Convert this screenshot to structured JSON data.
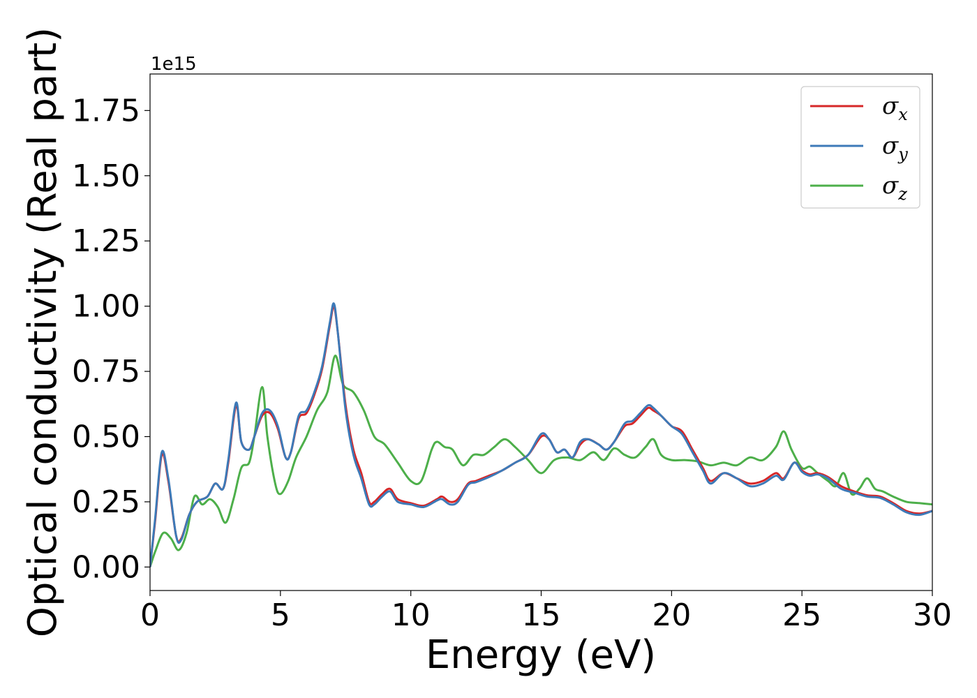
{
  "chart_data": {
    "type": "line",
    "xlabel": "Energy (eV)",
    "ylabel": "Optical conductivity (Real part)",
    "y_offset_label": "1e15",
    "xlim": [
      0,
      30
    ],
    "ylim": [
      -0.09,
      1.89
    ],
    "x_ticks": [
      0,
      5,
      10,
      15,
      20,
      25,
      30
    ],
    "x_tick_labels": [
      "0",
      "5",
      "10",
      "15",
      "20",
      "25",
      "30"
    ],
    "y_ticks": [
      0,
      0.25,
      0.5,
      0.75,
      1.0,
      1.25,
      1.5,
      1.75
    ],
    "y_tick_labels": [
      "0.00",
      "0.25",
      "0.50",
      "0.75",
      "1.00",
      "1.25",
      "1.50",
      "1.75"
    ],
    "grid": false,
    "legend_position": "top-right",
    "series": [
      {
        "name": "σx",
        "symbol": "σ",
        "subscript": "x",
        "color": "#d62728",
        "x": [
          0,
          0.2,
          0.45,
          0.7,
          1.0,
          1.2,
          1.5,
          1.8,
          2.2,
          2.5,
          2.8,
          3.0,
          3.3,
          3.5,
          3.8,
          4.0,
          4.3,
          4.6,
          4.9,
          5.2,
          5.4,
          5.7,
          6.0,
          6.3,
          6.6,
          6.9,
          7.05,
          7.2,
          7.5,
          7.8,
          8.1,
          8.4,
          8.6,
          8.9,
          9.2,
          9.5,
          10.0,
          10.5,
          11.0,
          11.2,
          11.5,
          11.8,
          12.2,
          12.5,
          13.0,
          13.5,
          14.0,
          14.5,
          15.0,
          15.3,
          15.6,
          15.9,
          16.2,
          16.5,
          16.8,
          17.2,
          17.5,
          17.8,
          18.2,
          18.5,
          18.8,
          19.1,
          19.3,
          19.6,
          20.0,
          20.4,
          20.8,
          21.2,
          21.5,
          22.0,
          22.5,
          23.0,
          23.5,
          24.0,
          24.3,
          24.7,
          25.0,
          25.3,
          25.6,
          26.0,
          26.5,
          27.0,
          27.5,
          28.0,
          28.5,
          29.0,
          29.5,
          30.0
        ],
        "values": [
          0.0,
          0.18,
          0.43,
          0.33,
          0.12,
          0.11,
          0.2,
          0.25,
          0.27,
          0.32,
          0.3,
          0.4,
          0.62,
          0.48,
          0.45,
          0.5,
          0.58,
          0.59,
          0.53,
          0.42,
          0.44,
          0.57,
          0.59,
          0.66,
          0.76,
          0.93,
          1.0,
          0.9,
          0.62,
          0.45,
          0.36,
          0.25,
          0.25,
          0.28,
          0.3,
          0.26,
          0.245,
          0.235,
          0.26,
          0.27,
          0.25,
          0.26,
          0.32,
          0.33,
          0.35,
          0.37,
          0.4,
          0.43,
          0.5,
          0.49,
          0.44,
          0.45,
          0.42,
          0.47,
          0.49,
          0.47,
          0.45,
          0.48,
          0.54,
          0.55,
          0.58,
          0.61,
          0.6,
          0.58,
          0.54,
          0.52,
          0.45,
          0.38,
          0.33,
          0.36,
          0.34,
          0.32,
          0.33,
          0.36,
          0.34,
          0.4,
          0.37,
          0.355,
          0.36,
          0.345,
          0.31,
          0.29,
          0.275,
          0.27,
          0.245,
          0.215,
          0.205,
          0.215
        ]
      },
      {
        "name": "σy",
        "symbol": "σ",
        "subscript": "y",
        "color": "#3d7ab8",
        "x": [
          0,
          0.2,
          0.45,
          0.7,
          1.0,
          1.2,
          1.5,
          1.8,
          2.2,
          2.5,
          2.8,
          3.0,
          3.3,
          3.5,
          3.8,
          4.0,
          4.3,
          4.6,
          4.9,
          5.2,
          5.4,
          5.7,
          6.0,
          6.3,
          6.6,
          6.9,
          7.05,
          7.2,
          7.5,
          7.8,
          8.1,
          8.4,
          8.6,
          8.9,
          9.2,
          9.5,
          10.0,
          10.5,
          11.0,
          11.2,
          11.5,
          11.8,
          12.2,
          12.5,
          13.0,
          13.5,
          14.0,
          14.5,
          15.0,
          15.3,
          15.6,
          15.9,
          16.2,
          16.5,
          16.8,
          17.2,
          17.5,
          17.8,
          18.2,
          18.5,
          18.8,
          19.1,
          19.3,
          19.6,
          20.0,
          20.4,
          20.8,
          21.2,
          21.5,
          22.0,
          22.5,
          23.0,
          23.5,
          24.0,
          24.3,
          24.7,
          25.0,
          25.3,
          25.6,
          26.0,
          26.5,
          27.0,
          27.5,
          28.0,
          28.5,
          29.0,
          29.5,
          30.0
        ],
        "values": [
          0.0,
          0.19,
          0.44,
          0.34,
          0.12,
          0.105,
          0.2,
          0.25,
          0.27,
          0.32,
          0.3,
          0.41,
          0.63,
          0.48,
          0.45,
          0.5,
          0.59,
          0.6,
          0.54,
          0.42,
          0.44,
          0.58,
          0.6,
          0.67,
          0.77,
          0.94,
          1.01,
          0.9,
          0.6,
          0.43,
          0.34,
          0.24,
          0.24,
          0.27,
          0.29,
          0.25,
          0.24,
          0.23,
          0.255,
          0.26,
          0.24,
          0.25,
          0.315,
          0.325,
          0.345,
          0.37,
          0.4,
          0.43,
          0.51,
          0.49,
          0.44,
          0.45,
          0.42,
          0.48,
          0.49,
          0.47,
          0.45,
          0.48,
          0.55,
          0.56,
          0.59,
          0.62,
          0.61,
          0.58,
          0.54,
          0.51,
          0.44,
          0.37,
          0.32,
          0.36,
          0.34,
          0.31,
          0.32,
          0.35,
          0.335,
          0.4,
          0.365,
          0.35,
          0.355,
          0.34,
          0.3,
          0.285,
          0.27,
          0.265,
          0.24,
          0.21,
          0.2,
          0.215
        ]
      },
      {
        "name": "σz",
        "symbol": "σ",
        "subscript": "z",
        "color": "#4daf4a",
        "x": [
          0,
          0.2,
          0.5,
          0.8,
          1.1,
          1.4,
          1.7,
          2.0,
          2.3,
          2.6,
          2.9,
          3.2,
          3.5,
          3.8,
          4.0,
          4.3,
          4.5,
          4.8,
          5.0,
          5.3,
          5.6,
          6.0,
          6.4,
          6.8,
          7.1,
          7.4,
          7.8,
          8.2,
          8.6,
          9.0,
          9.5,
          10.0,
          10.4,
          10.8,
          11.0,
          11.3,
          11.6,
          12.0,
          12.4,
          12.8,
          13.2,
          13.6,
          14.0,
          14.5,
          15.0,
          15.5,
          16.0,
          16.5,
          17.0,
          17.4,
          17.8,
          18.2,
          18.6,
          19.0,
          19.3,
          19.6,
          20.0,
          20.5,
          21.0,
          21.5,
          22.0,
          22.5,
          23.0,
          23.5,
          24.0,
          24.3,
          24.6,
          25.0,
          25.3,
          25.6,
          26.0,
          26.3,
          26.6,
          26.9,
          27.2,
          27.5,
          27.8,
          28.1,
          28.5,
          29.0,
          29.5,
          30.0
        ],
        "values": [
          0.0,
          0.06,
          0.13,
          0.11,
          0.065,
          0.13,
          0.27,
          0.24,
          0.26,
          0.23,
          0.17,
          0.26,
          0.38,
          0.4,
          0.5,
          0.69,
          0.5,
          0.32,
          0.28,
          0.33,
          0.42,
          0.5,
          0.6,
          0.67,
          0.81,
          0.7,
          0.67,
          0.6,
          0.5,
          0.47,
          0.4,
          0.33,
          0.33,
          0.45,
          0.48,
          0.46,
          0.45,
          0.39,
          0.43,
          0.43,
          0.46,
          0.49,
          0.46,
          0.41,
          0.36,
          0.41,
          0.42,
          0.41,
          0.44,
          0.41,
          0.455,
          0.43,
          0.42,
          0.46,
          0.49,
          0.43,
          0.41,
          0.41,
          0.405,
          0.39,
          0.4,
          0.39,
          0.42,
          0.41,
          0.46,
          0.52,
          0.45,
          0.38,
          0.385,
          0.36,
          0.33,
          0.31,
          0.36,
          0.28,
          0.3,
          0.34,
          0.3,
          0.29,
          0.27,
          0.25,
          0.245,
          0.24
        ]
      }
    ]
  }
}
